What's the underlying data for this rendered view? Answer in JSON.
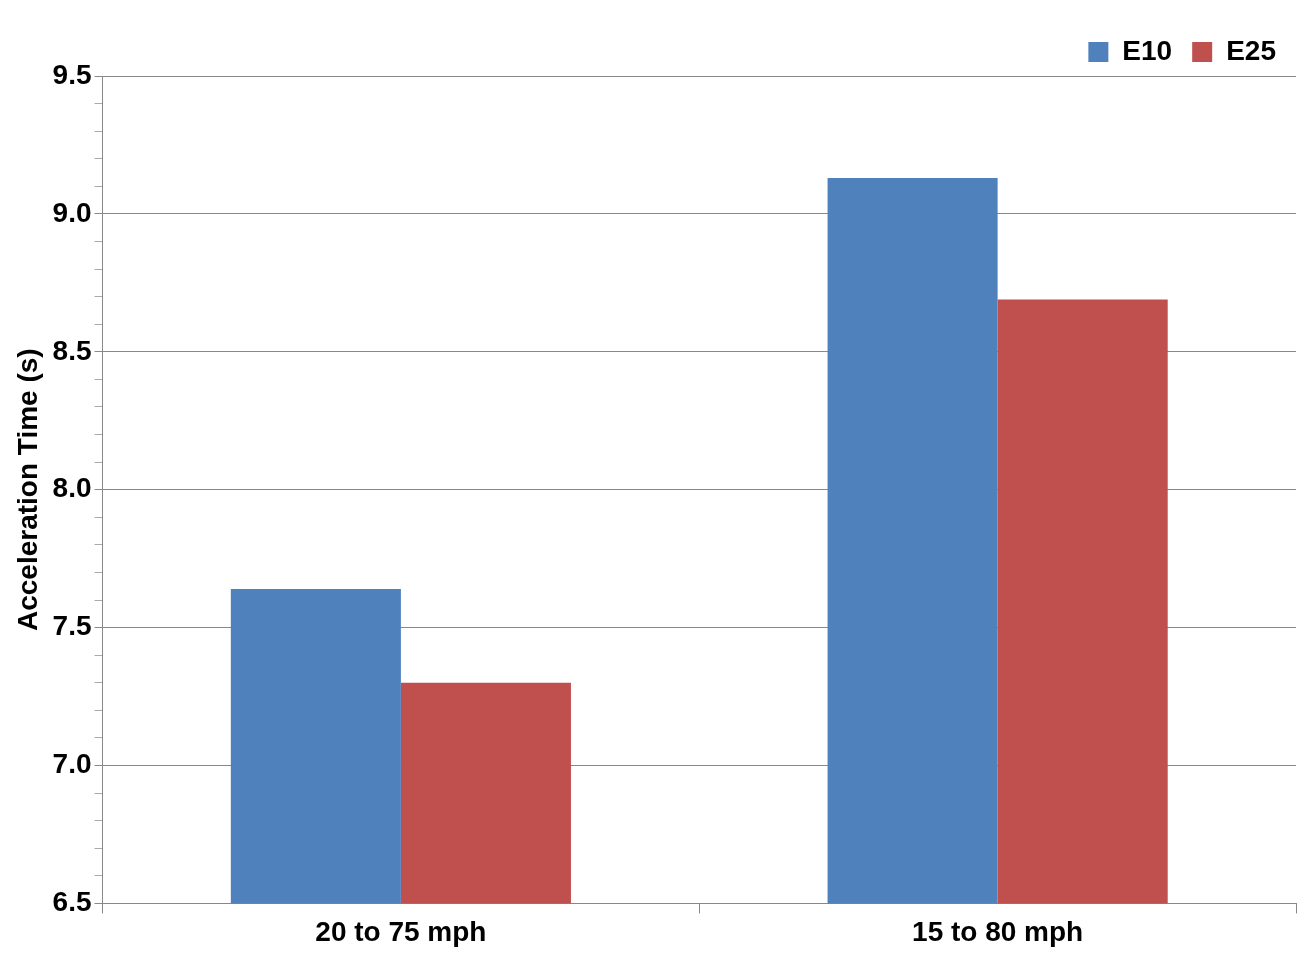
{
  "chart_data": {
    "type": "bar",
    "ylabel": "Acceleration Time (s)",
    "categories": [
      "20 to 75 mph",
      "15 to 80 mph"
    ],
    "series": [
      {
        "name": "E10",
        "color": "#4f81bd",
        "values": [
          7.64,
          9.13
        ]
      },
      {
        "name": "E25",
        "color": "#c0504d",
        "values": [
          7.3,
          8.69
        ]
      }
    ],
    "ylim": [
      6.5,
      9.5
    ],
    "yticks": [
      {
        "value": 6.5,
        "label": "6.5"
      },
      {
        "value": 6.6,
        "label": null
      },
      {
        "value": 6.7,
        "label": null
      },
      {
        "value": 6.8,
        "label": null
      },
      {
        "value": 6.9,
        "label": null
      },
      {
        "value": 7,
        "label": "7.0"
      },
      {
        "value": 7.1,
        "label": null
      },
      {
        "value": 7.2,
        "label": null
      },
      {
        "value": 7.3,
        "label": null
      },
      {
        "value": 7.4,
        "label": null
      },
      {
        "value": 7.5,
        "label": "7.5"
      },
      {
        "value": 7.6,
        "label": null
      },
      {
        "value": 7.7,
        "label": null
      },
      {
        "value": 7.8,
        "label": null
      },
      {
        "value": 7.9,
        "label": null
      },
      {
        "value": 8,
        "label": "8.0"
      },
      {
        "value": 8.1,
        "label": null
      },
      {
        "value": 8.2,
        "label": null
      },
      {
        "value": 8.3,
        "label": null
      },
      {
        "value": 8.4,
        "label": null
      },
      {
        "value": 8.5,
        "label": "8.5"
      },
      {
        "value": 8.6,
        "label": null
      },
      {
        "value": 8.7,
        "label": null
      },
      {
        "value": 8.8,
        "label": null
      },
      {
        "value": 8.9,
        "label": null
      },
      {
        "value": 9,
        "label": "9.0"
      },
      {
        "value": 9.1,
        "label": null
      },
      {
        "value": 9.2,
        "label": null
      },
      {
        "value": 9.3,
        "label": null
      },
      {
        "value": 9.4,
        "label": null
      },
      {
        "value": 9.5,
        "label": "9.5"
      }
    ],
    "grid": "y",
    "legend": "top right"
  }
}
